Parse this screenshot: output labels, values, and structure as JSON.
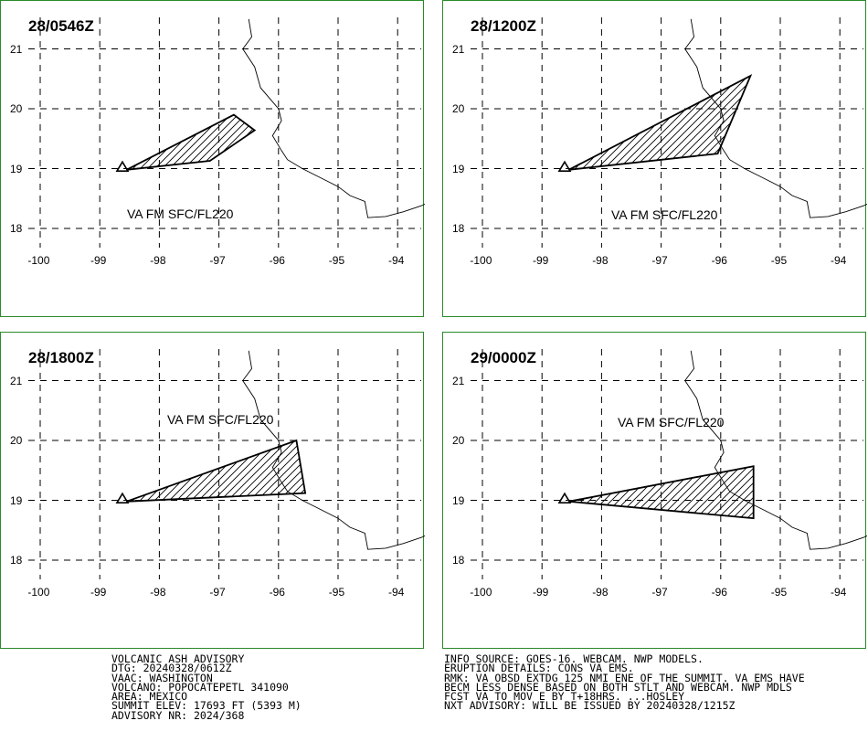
{
  "panels": [
    {
      "title": "28/0546Z",
      "va_label": "VA FM SFC/FL220",
      "polygon": [
        [
          -98.55,
          18.98
        ],
        [
          -96.75,
          19.9
        ],
        [
          -96.4,
          19.64
        ],
        [
          -97.15,
          19.13
        ],
        [
          -98.55,
          18.98
        ]
      ]
    },
    {
      "title": "28/1200Z",
      "va_label": "VA FM SFC/FL220",
      "polygon": [
        [
          -98.55,
          18.98
        ],
        [
          -95.5,
          20.55
        ],
        [
          -96.05,
          19.25
        ],
        [
          -98.55,
          18.98
        ]
      ]
    },
    {
      "title": "28/1800Z",
      "va_label": "VA FM SFC/FL220",
      "polygon": [
        [
          -98.55,
          18.98
        ],
        [
          -95.7,
          20.0
        ],
        [
          -95.55,
          19.12
        ],
        [
          -98.55,
          18.98
        ]
      ]
    },
    {
      "title": "29/0000Z",
      "va_label": "VA FM SFC/FL220",
      "polygon": [
        [
          -98.55,
          18.98
        ],
        [
          -95.45,
          19.57
        ],
        [
          -95.45,
          18.7
        ],
        [
          -98.55,
          18.98
        ]
      ]
    }
  ],
  "axes": {
    "lon_ticks": [
      "-100",
      "-99",
      "-98",
      "-97",
      "-96",
      "-95",
      "-94"
    ],
    "lat_ticks": [
      "21",
      "20",
      "19",
      "18"
    ]
  },
  "volcano": {
    "lon": -98.62,
    "lat": 19.02
  },
  "coastline": [
    [
      -96.5,
      21.5
    ],
    [
      -96.45,
      21.2
    ],
    [
      -96.6,
      21.0
    ],
    [
      -96.4,
      20.7
    ],
    [
      -96.3,
      20.35
    ],
    [
      -96.0,
      20.0
    ],
    [
      -95.95,
      19.8
    ],
    [
      -96.1,
      19.55
    ],
    [
      -95.95,
      19.3
    ],
    [
      -95.85,
      19.15
    ],
    [
      -95.6,
      19.0
    ],
    [
      -95.2,
      18.8
    ],
    [
      -95.0,
      18.7
    ],
    [
      -94.8,
      18.55
    ],
    [
      -94.55,
      18.45
    ],
    [
      -94.5,
      18.18
    ],
    [
      -94.2,
      18.2
    ],
    [
      -93.9,
      18.28
    ],
    [
      -93.6,
      18.38
    ],
    [
      -93.45,
      18.45
    ]
  ],
  "advisory_left": [
    "VOLCANIC ASH ADVISORY",
    "DTG: 20240328/0612Z",
    "VAAC: WASHINGTON",
    "VOLCANO: POPOCATEPETL 341090",
    "AREA: MEXICO",
    "SUMMIT ELEV: 17693 FT (5393 M)",
    "ADVISORY NR: 2024/368"
  ],
  "advisory_right": [
    "INFO SOURCE: GOES-16. WEBCAM. NWP MODELS.",
    "ERUPTION DETAILS: CONS VA EMS.",
    "RMK: VA OBSD EXTDG 125 NMI ENE OF THE SUMMIT. VA EMS HAVE",
    "BECM LESS DENSE BASED ON BOTH STLT AND WEBCAM. NWP MDLS",
    "FCST VA TO MOV E BY T+18HRS. ...HOSLEY",
    "NXT ADVISORY: WILL BE ISSUED BY 20240328/1215Z"
  ],
  "colors": {
    "frame": "#2a8a2a",
    "grid": "#000000",
    "ash": "#000000"
  }
}
